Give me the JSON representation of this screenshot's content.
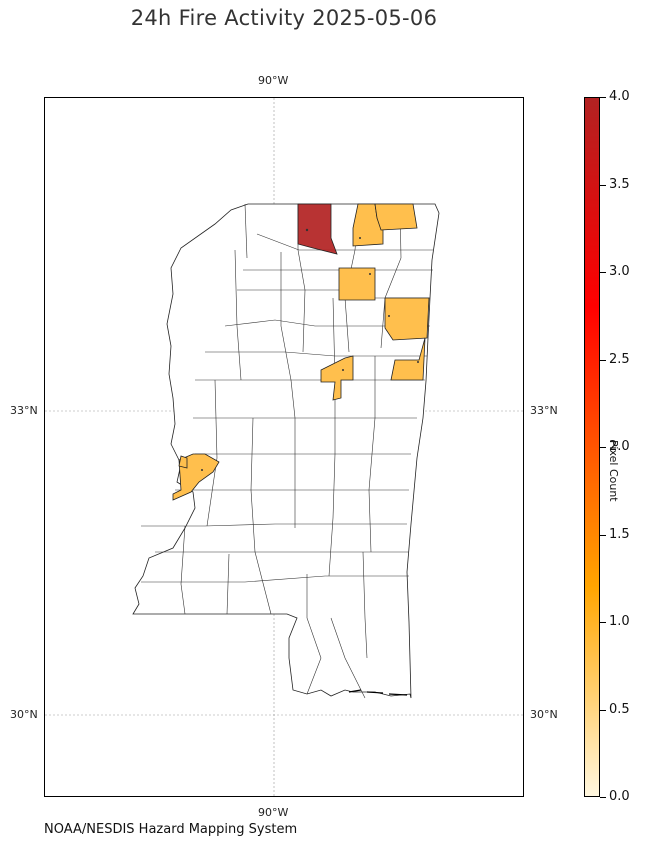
{
  "title": "24h Fire Activity 2025-05-06",
  "source": "NOAA/NESDIS Hazard Mapping System",
  "lon_label_top": "90°W",
  "lon_label_bottom": "90°W",
  "lat_labels": {
    "lat33": "33°N",
    "lat30": "30°N"
  },
  "colorbar": {
    "title": "Pixel Count",
    "ticks": [
      "0.0",
      "0.5",
      "1.0",
      "1.5",
      "2.0",
      "2.5",
      "3.0",
      "3.5",
      "4.0"
    ],
    "colors": {
      "low": "#fff7e0",
      "mid": "#ffa500",
      "high": "#b22222"
    }
  },
  "colors": {
    "fill_one": "#ffbf4d",
    "fill_four": "#b22222",
    "border": "#222222"
  }
}
